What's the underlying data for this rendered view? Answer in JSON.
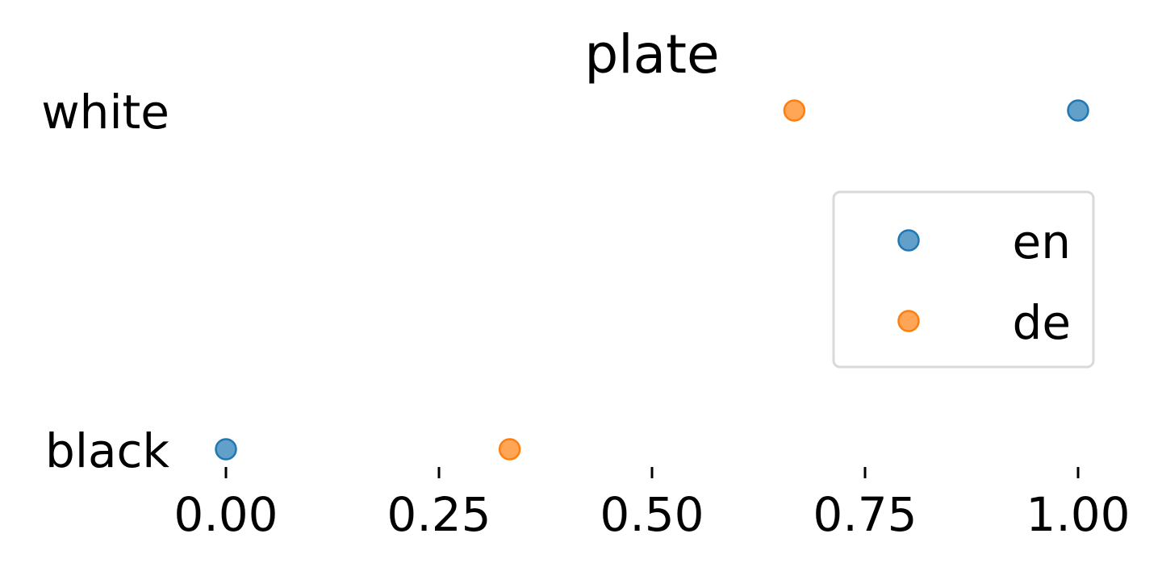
{
  "chart_data": {
    "type": "scatter",
    "title": "plate",
    "categories": [
      "black",
      "white"
    ],
    "xlim": [
      0,
      1
    ],
    "x_ticks": [
      "0.00",
      "0.25",
      "0.50",
      "0.75",
      "1.00"
    ],
    "x_tick_values": [
      0,
      0.25,
      0.5,
      0.75,
      1.0
    ],
    "grid": false,
    "legend_position": "right",
    "series": [
      {
        "name": "en",
        "color": "#1f77b4",
        "points": [
          {
            "y": "white",
            "x": 1.0
          },
          {
            "y": "black",
            "x": 0.0
          }
        ]
      },
      {
        "name": "de",
        "color": "#ff7f0e",
        "points": [
          {
            "y": "white",
            "x": 0.667
          },
          {
            "y": "black",
            "x": 0.333
          }
        ]
      }
    ]
  }
}
